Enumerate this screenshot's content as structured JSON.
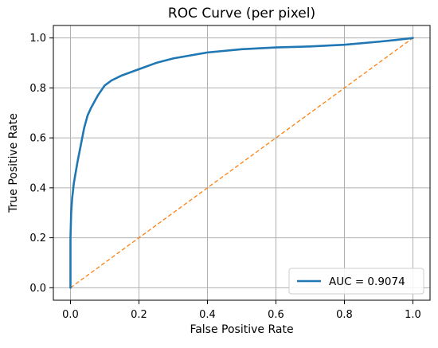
{
  "chart_data": {
    "type": "line",
    "title": "ROC Curve (per pixel)",
    "xlabel": "False Positive Rate",
    "ylabel": "True Positive Rate",
    "xlim": [
      -0.05,
      1.05
    ],
    "ylim": [
      -0.05,
      1.05
    ],
    "xticks": [
      "0.0",
      "0.2",
      "0.4",
      "0.6",
      "0.8",
      "1.0"
    ],
    "yticks": [
      "0.0",
      "0.2",
      "0.4",
      "0.6",
      "0.8",
      "1.0"
    ],
    "grid": true,
    "legend_position": "lower-right",
    "series": [
      {
        "name": "AUC = 0.9074",
        "color": "#1f77b4",
        "style": "solid",
        "x": [
          0.0,
          0.0,
          0.002,
          0.005,
          0.01,
          0.015,
          0.02,
          0.03,
          0.04,
          0.05,
          0.06,
          0.08,
          0.1,
          0.12,
          0.15,
          0.2,
          0.25,
          0.3,
          0.4,
          0.5,
          0.6,
          0.7,
          0.8,
          0.9,
          0.95,
          1.0
        ],
        "y": [
          0.0,
          0.2,
          0.3,
          0.36,
          0.42,
          0.46,
          0.5,
          0.57,
          0.64,
          0.69,
          0.72,
          0.77,
          0.81,
          0.83,
          0.85,
          0.875,
          0.9,
          0.918,
          0.942,
          0.955,
          0.962,
          0.966,
          0.973,
          0.985,
          0.992,
          1.0
        ]
      },
      {
        "color": "#ff7f0e",
        "style": "dashed",
        "x": [
          0.0,
          1.0
        ],
        "y": [
          0.0,
          1.0
        ]
      }
    ]
  }
}
